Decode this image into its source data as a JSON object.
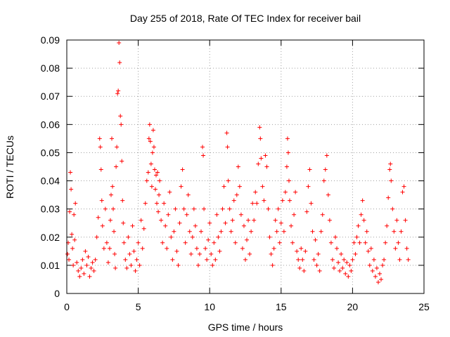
{
  "chart_data": {
    "type": "scatter",
    "title": "Day 255 of 2018, Rate Of TEC Index for receiver bail",
    "xlabel": "GPS time / hours",
    "ylabel": "ROTI / TECUs",
    "xlim": [
      0,
      25
    ],
    "ylim": [
      0,
      0.09
    ],
    "xticks": [
      0,
      5,
      10,
      15,
      20,
      25
    ],
    "yticks": [
      0,
      0.01,
      0.02,
      0.03,
      0.04,
      0.05,
      0.06,
      0.07,
      0.08,
      0.09
    ],
    "xtick_labels": [
      "0",
      "5",
      "10",
      "15",
      "20",
      "25"
    ],
    "ytick_labels": [
      "0",
      "0.01",
      "0.02",
      "0.03",
      "0.04",
      "0.05",
      "0.06",
      "0.07",
      "0.08",
      "0.09"
    ],
    "grid": true,
    "marker": "+",
    "series": [
      {
        "color": "#ff0000",
        "points": [
          [
            0.05,
            0.014
          ],
          [
            0.1,
            0.018
          ],
          [
            0.15,
            0.012
          ],
          [
            0.2,
            0.029
          ],
          [
            0.25,
            0.043
          ],
          [
            0.3,
            0.037
          ],
          [
            0.35,
            0.021
          ],
          [
            0.4,
            0.016
          ],
          [
            0.45,
            0.01
          ],
          [
            0.5,
            0.028
          ],
          [
            0.55,
            0.019
          ],
          [
            0.6,
            0.032
          ],
          [
            0.7,
            0.011
          ],
          [
            0.8,
            0.008
          ],
          [
            0.9,
            0.006
          ],
          [
            1.0,
            0.009
          ],
          [
            1.1,
            0.012
          ],
          [
            1.2,
            0.007
          ],
          [
            1.3,
            0.015
          ],
          [
            1.4,
            0.01
          ],
          [
            1.5,
            0.013
          ],
          [
            1.6,
            0.006
          ],
          [
            1.7,
            0.009
          ],
          [
            1.8,
            0.011
          ],
          [
            1.9,
            0.008
          ],
          [
            2.0,
            0.012
          ],
          [
            2.1,
            0.02
          ],
          [
            2.2,
            0.027
          ],
          [
            2.3,
            0.055
          ],
          [
            2.35,
            0.052
          ],
          [
            2.4,
            0.044
          ],
          [
            2.45,
            0.033
          ],
          [
            2.5,
            0.024
          ],
          [
            2.6,
            0.016
          ],
          [
            2.7,
            0.03
          ],
          [
            2.8,
            0.018
          ],
          [
            2.9,
            0.011
          ],
          [
            3.0,
            0.016
          ],
          [
            3.05,
            0.026
          ],
          [
            3.1,
            0.035
          ],
          [
            3.15,
            0.055
          ],
          [
            3.2,
            0.038
          ],
          [
            3.25,
            0.03
          ],
          [
            3.3,
            0.022
          ],
          [
            3.35,
            0.014
          ],
          [
            3.4,
            0.009
          ],
          [
            3.45,
            0.045
          ],
          [
            3.5,
            0.052
          ],
          [
            3.55,
            0.071
          ],
          [
            3.6,
            0.072
          ],
          [
            3.65,
            0.089
          ],
          [
            3.7,
            0.082
          ],
          [
            3.75,
            0.063
          ],
          [
            3.8,
            0.06
          ],
          [
            3.85,
            0.047
          ],
          [
            3.9,
            0.033
          ],
          [
            3.95,
            0.025
          ],
          [
            4.0,
            0.018
          ],
          [
            4.1,
            0.012
          ],
          [
            4.2,
            0.009
          ],
          [
            4.3,
            0.02
          ],
          [
            4.4,
            0.014
          ],
          [
            4.5,
            0.01
          ],
          [
            4.6,
            0.024
          ],
          [
            4.7,
            0.015
          ],
          [
            4.8,
            0.008
          ],
          [
            4.9,
            0.012
          ],
          [
            5.0,
            0.018
          ],
          [
            5.1,
            0.01
          ],
          [
            5.2,
            0.026
          ],
          [
            5.3,
            0.016
          ],
          [
            5.4,
            0.023
          ],
          [
            5.5,
            0.032
          ],
          [
            5.6,
            0.04
          ],
          [
            5.7,
            0.043
          ],
          [
            5.75,
            0.055
          ],
          [
            5.8,
            0.06
          ],
          [
            5.85,
            0.054
          ],
          [
            5.9,
            0.046
          ],
          [
            5.95,
            0.038
          ],
          [
            6.0,
            0.05
          ],
          [
            6.05,
            0.058
          ],
          [
            6.1,
            0.052
          ],
          [
            6.15,
            0.044
          ],
          [
            6.2,
            0.037
          ],
          [
            6.25,
            0.042
          ],
          [
            6.3,
            0.032
          ],
          [
            6.35,
            0.043
          ],
          [
            6.4,
            0.029
          ],
          [
            6.45,
            0.035
          ],
          [
            6.5,
            0.04
          ],
          [
            6.6,
            0.026
          ],
          [
            6.7,
            0.018
          ],
          [
            6.8,
            0.032
          ],
          [
            6.9,
            0.024
          ],
          [
            7.0,
            0.016
          ],
          [
            7.1,
            0.028
          ],
          [
            7.2,
            0.036
          ],
          [
            7.3,
            0.02
          ],
          [
            7.4,
            0.012
          ],
          [
            7.5,
            0.022
          ],
          [
            7.6,
            0.03
          ],
          [
            7.7,
            0.015
          ],
          [
            7.8,
            0.01
          ],
          [
            7.9,
            0.025
          ],
          [
            8.0,
            0.038
          ],
          [
            8.1,
            0.044
          ],
          [
            8.2,
            0.03
          ],
          [
            8.3,
            0.018
          ],
          [
            8.4,
            0.028
          ],
          [
            8.5,
            0.035
          ],
          [
            8.6,
            0.022
          ],
          [
            8.7,
            0.014
          ],
          [
            8.8,
            0.02
          ],
          [
            8.9,
            0.03
          ],
          [
            9.0,
            0.024
          ],
          [
            9.1,
            0.016
          ],
          [
            9.2,
            0.01
          ],
          [
            9.3,
            0.014
          ],
          [
            9.4,
            0.022
          ],
          [
            9.5,
            0.052
          ],
          [
            9.55,
            0.049
          ],
          [
            9.6,
            0.03
          ],
          [
            9.7,
            0.016
          ],
          [
            9.8,
            0.012
          ],
          [
            9.9,
            0.019
          ],
          [
            10.0,
            0.025
          ],
          [
            10.1,
            0.014
          ],
          [
            10.2,
            0.01
          ],
          [
            10.3,
            0.018
          ],
          [
            10.4,
            0.012
          ],
          [
            10.5,
            0.028
          ],
          [
            10.6,
            0.02
          ],
          [
            10.7,
            0.015
          ],
          [
            10.8,
            0.022
          ],
          [
            10.9,
            0.03
          ],
          [
            11.0,
            0.038
          ],
          [
            11.1,
            0.025
          ],
          [
            11.2,
            0.057
          ],
          [
            11.25,
            0.052
          ],
          [
            11.3,
            0.04
          ],
          [
            11.4,
            0.03
          ],
          [
            11.5,
            0.022
          ],
          [
            11.6,
            0.026
          ],
          [
            11.7,
            0.033
          ],
          [
            11.8,
            0.018
          ],
          [
            11.9,
            0.035
          ],
          [
            12.0,
            0.045
          ],
          [
            12.1,
            0.038
          ],
          [
            12.2,
            0.028
          ],
          [
            12.3,
            0.016
          ],
          [
            12.4,
            0.024
          ],
          [
            12.5,
            0.012
          ],
          [
            12.6,
            0.019
          ],
          [
            12.7,
            0.026
          ],
          [
            12.8,
            0.014
          ],
          [
            12.9,
            0.022
          ],
          [
            13.0,
            0.032
          ],
          [
            13.1,
            0.026
          ],
          [
            13.2,
            0.036
          ],
          [
            13.3,
            0.032
          ],
          [
            13.4,
            0.046
          ],
          [
            13.5,
            0.059
          ],
          [
            13.55,
            0.055
          ],
          [
            13.6,
            0.048
          ],
          [
            13.7,
            0.038
          ],
          [
            13.8,
            0.033
          ],
          [
            13.9,
            0.049
          ],
          [
            14.0,
            0.045
          ],
          [
            14.1,
            0.03
          ],
          [
            14.2,
            0.02
          ],
          [
            14.3,
            0.014
          ],
          [
            14.4,
            0.01
          ],
          [
            14.5,
            0.016
          ],
          [
            14.6,
            0.026
          ],
          [
            14.7,
            0.022
          ],
          [
            14.8,
            0.03
          ],
          [
            14.9,
            0.018
          ],
          [
            15.0,
            0.025
          ],
          [
            15.1,
            0.033
          ],
          [
            15.2,
            0.022
          ],
          [
            15.3,
            0.036
          ],
          [
            15.4,
            0.045
          ],
          [
            15.45,
            0.055
          ],
          [
            15.5,
            0.05
          ],
          [
            15.55,
            0.04
          ],
          [
            15.6,
            0.033
          ],
          [
            15.7,
            0.024
          ],
          [
            15.8,
            0.018
          ],
          [
            15.9,
            0.028
          ],
          [
            16.0,
            0.036
          ],
          [
            16.1,
            0.015
          ],
          [
            16.2,
            0.012
          ],
          [
            16.3,
            0.009
          ],
          [
            16.4,
            0.016
          ],
          [
            16.5,
            0.012
          ],
          [
            16.6,
            0.008
          ],
          [
            16.7,
            0.015
          ],
          [
            16.8,
            0.029
          ],
          [
            16.9,
            0.038
          ],
          [
            17.0,
            0.044
          ],
          [
            17.1,
            0.032
          ],
          [
            17.2,
            0.022
          ],
          [
            17.3,
            0.012
          ],
          [
            17.4,
            0.019
          ],
          [
            17.5,
            0.01
          ],
          [
            17.6,
            0.014
          ],
          [
            17.7,
            0.008
          ],
          [
            17.8,
            0.022
          ],
          [
            17.9,
            0.028
          ],
          [
            18.0,
            0.04
          ],
          [
            18.1,
            0.044
          ],
          [
            18.2,
            0.049
          ],
          [
            18.3,
            0.035
          ],
          [
            18.4,
            0.026
          ],
          [
            18.5,
            0.018
          ],
          [
            18.6,
            0.012
          ],
          [
            18.7,
            0.009
          ],
          [
            18.8,
            0.02
          ],
          [
            18.9,
            0.016
          ],
          [
            19.0,
            0.011
          ],
          [
            19.1,
            0.008
          ],
          [
            19.2,
            0.014
          ],
          [
            19.3,
            0.009
          ],
          [
            19.4,
            0.012
          ],
          [
            19.5,
            0.007
          ],
          [
            19.6,
            0.011
          ],
          [
            19.7,
            0.006
          ],
          [
            19.8,
            0.01
          ],
          [
            19.9,
            0.008
          ],
          [
            20.0,
            0.012
          ],
          [
            20.1,
            0.018
          ],
          [
            20.2,
            0.014
          ],
          [
            20.3,
            0.02
          ],
          [
            20.4,
            0.024
          ],
          [
            20.5,
            0.018
          ],
          [
            20.6,
            0.028
          ],
          [
            20.7,
            0.033
          ],
          [
            20.8,
            0.026
          ],
          [
            20.9,
            0.018
          ],
          [
            21.0,
            0.022
          ],
          [
            21.1,
            0.015
          ],
          [
            21.2,
            0.01
          ],
          [
            21.3,
            0.016
          ],
          [
            21.4,
            0.008
          ],
          [
            21.5,
            0.012
          ],
          [
            21.6,
            0.006
          ],
          [
            21.7,
            0.009
          ],
          [
            21.8,
            0.004
          ],
          [
            21.9,
            0.007
          ],
          [
            22.0,
            0.005
          ],
          [
            22.1,
            0.01
          ],
          [
            22.2,
            0.012
          ],
          [
            22.3,
            0.018
          ],
          [
            22.4,
            0.024
          ],
          [
            22.5,
            0.034
          ],
          [
            22.6,
            0.044
          ],
          [
            22.65,
            0.046
          ],
          [
            22.7,
            0.04
          ],
          [
            22.8,
            0.03
          ],
          [
            22.9,
            0.022
          ],
          [
            23.0,
            0.016
          ],
          [
            23.1,
            0.026
          ],
          [
            23.2,
            0.018
          ],
          [
            23.3,
            0.012
          ],
          [
            23.4,
            0.022
          ],
          [
            23.5,
            0.036
          ],
          [
            23.6,
            0.038
          ],
          [
            23.7,
            0.026
          ],
          [
            23.8,
            0.016
          ],
          [
            23.9,
            0.012
          ]
        ]
      }
    ]
  }
}
